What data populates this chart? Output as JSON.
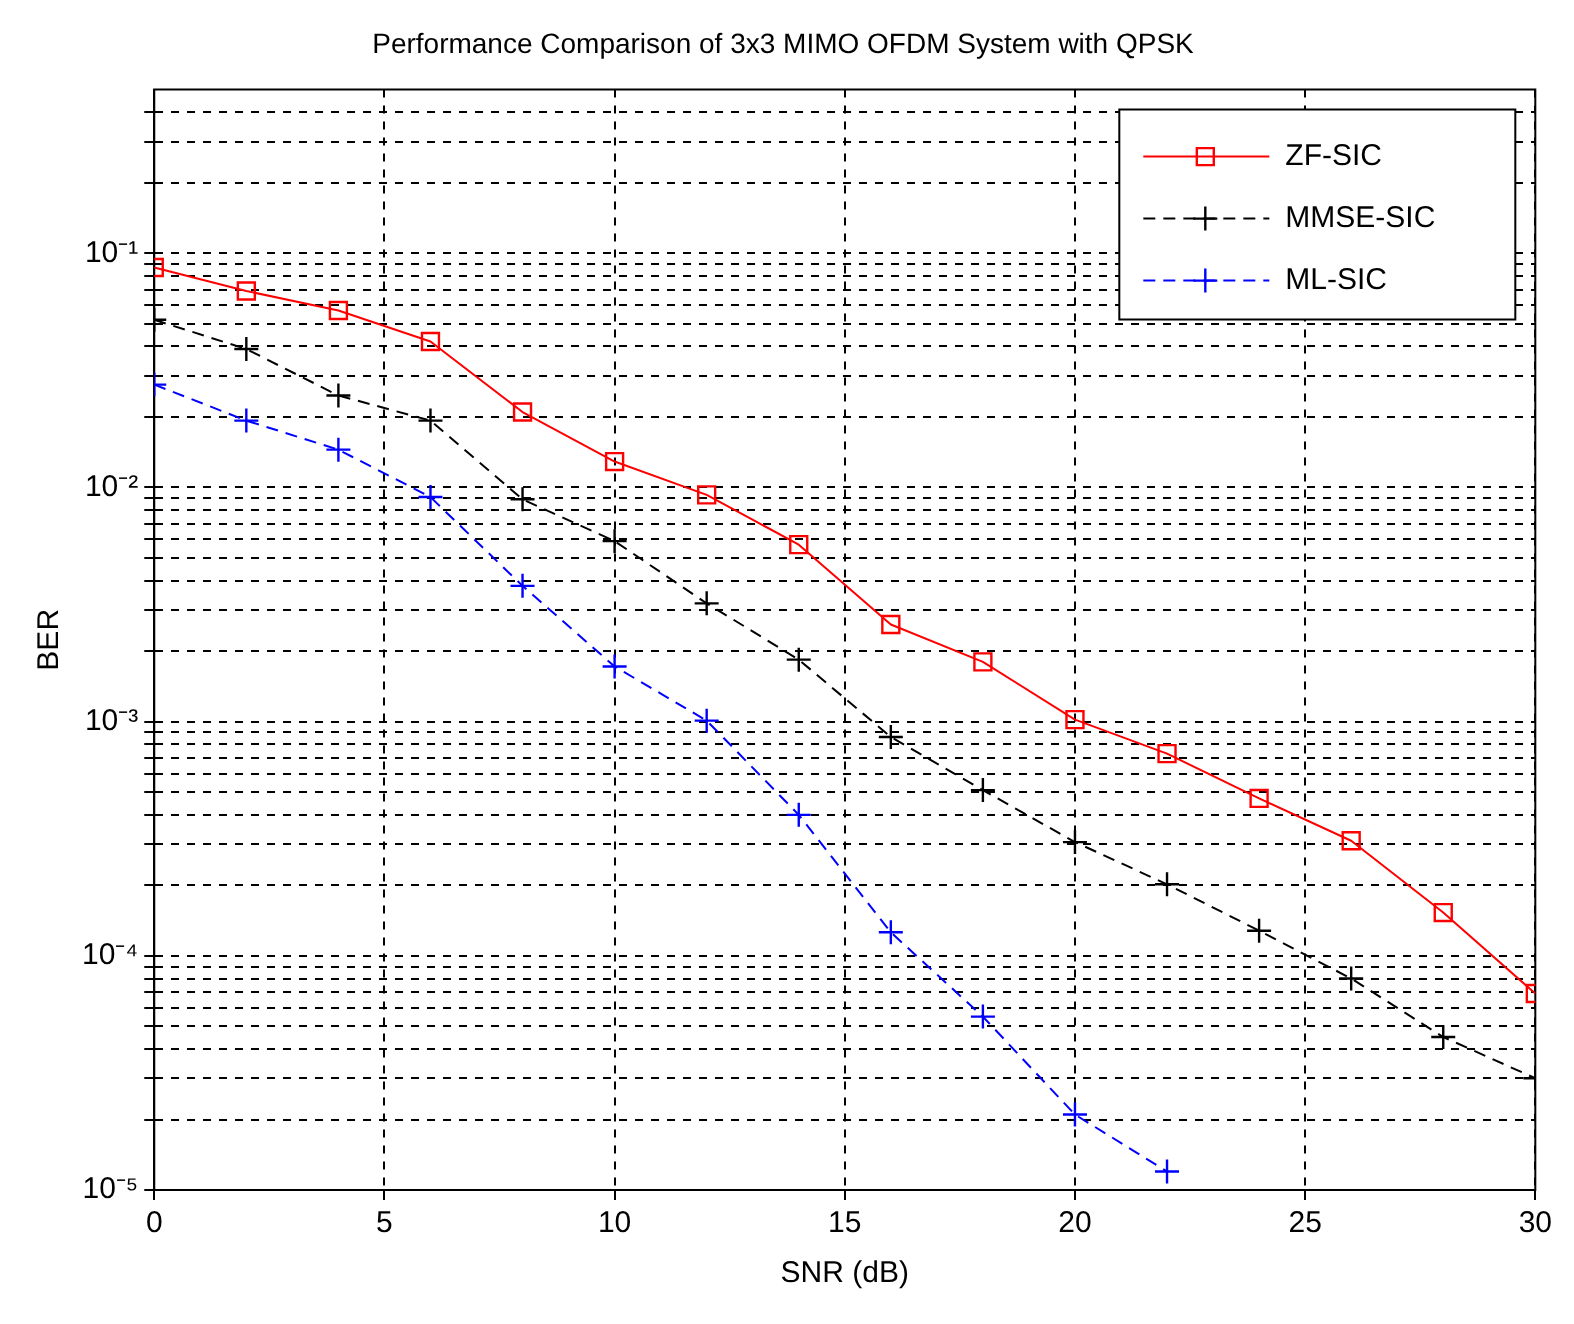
{
  "chart_data": {
    "type": "line",
    "title": "Performance Comparison of 3x3 MIMO OFDM System with QPSK",
    "xlabel": "SNR (dB)",
    "ylabel": "BER",
    "x": [
      0,
      2,
      4,
      6,
      8,
      10,
      12,
      14,
      16,
      18,
      20,
      22,
      24,
      26,
      28,
      30
    ],
    "series": [
      {
        "name": "ZF-SIC",
        "color": "#ff0000",
        "marker": "square",
        "line_style": "solid",
        "values": [
          0.087,
          0.069,
          0.057,
          0.042,
          0.021,
          0.0129,
          0.0093,
          0.0057,
          0.0026,
          0.0018,
          0.00102,
          0.00073,
          0.00047,
          0.00031,
          0.000153,
          6.9e-05
        ]
      },
      {
        "name": "MMSE-SIC",
        "color": "#000000",
        "marker": "cross",
        "line_style": "dashed",
        "values": [
          0.052,
          0.039,
          0.0247,
          0.0193,
          0.0089,
          0.0059,
          0.0032,
          0.00184,
          0.00086,
          0.00051,
          0.000306,
          0.000202,
          0.000128,
          8e-05,
          4.5e-05,
          3e-05
        ]
      },
      {
        "name": "ML-SIC",
        "color": "#0000ff",
        "marker": "cross",
        "line_style": "dashed",
        "x": [
          0,
          2,
          4,
          6,
          8,
          10,
          12,
          14,
          16,
          18,
          20,
          22
        ],
        "values": [
          0.0275,
          0.0193,
          0.0145,
          0.0091,
          0.0038,
          0.00172,
          0.00101,
          0.0004,
          0.000126,
          5.5e-05,
          2.1e-05,
          1.2e-05
        ]
      }
    ],
    "log": "y",
    "xlim": [
      0,
      30
    ],
    "xticks": [
      0,
      5,
      10,
      15,
      20,
      25,
      30
    ],
    "ylim": [
      1e-05,
      0.5
    ],
    "yticks": [
      {
        "value": 1e-05,
        "label": "10⁻⁵"
      },
      {
        "value": 2e-05,
        "label": null
      },
      {
        "value": 3e-05,
        "label": null
      },
      {
        "value": 4e-05,
        "label": null
      },
      {
        "value": 5e-05,
        "label": null
      },
      {
        "value": 6e-05,
        "label": null
      },
      {
        "value": 7e-05,
        "label": null
      },
      {
        "value": 8e-05,
        "label": null
      },
      {
        "value": 9e-05,
        "label": null
      },
      {
        "value": 0.0001,
        "label": "10⁻⁴"
      },
      {
        "value": 0.0002,
        "label": null
      },
      {
        "value": 0.0003,
        "label": null
      },
      {
        "value": 0.0004,
        "label": null
      },
      {
        "value": 0.0005,
        "label": null
      },
      {
        "value": 0.0006,
        "label": null
      },
      {
        "value": 0.0007,
        "label": null
      },
      {
        "value": 0.0008,
        "label": null
      },
      {
        "value": 0.0009,
        "label": null
      },
      {
        "value": 0.001,
        "label": "10⁻³"
      },
      {
        "value": 0.002,
        "label": null
      },
      {
        "value": 0.003,
        "label": null
      },
      {
        "value": 0.004,
        "label": null
      },
      {
        "value": 0.005,
        "label": null
      },
      {
        "value": 0.006,
        "label": null
      },
      {
        "value": 0.007,
        "label": null
      },
      {
        "value": 0.008,
        "label": null
      },
      {
        "value": 0.009,
        "label": null
      },
      {
        "value": 0.01,
        "label": "10⁻²"
      },
      {
        "value": 0.02,
        "label": null
      },
      {
        "value": 0.03,
        "label": null
      },
      {
        "value": 0.04,
        "label": null
      },
      {
        "value": 0.05,
        "label": null
      },
      {
        "value": 0.06,
        "label": null
      },
      {
        "value": 0.07,
        "label": null
      },
      {
        "value": 0.08,
        "label": null
      },
      {
        "value": 0.09,
        "label": null
      },
      {
        "value": 0.1,
        "label": "10⁻¹"
      },
      {
        "value": 0.2,
        "label": null
      },
      {
        "value": 0.3,
        "label": null
      },
      {
        "value": 0.4,
        "label": null
      }
    ],
    "grid": true,
    "legend": "top right"
  }
}
